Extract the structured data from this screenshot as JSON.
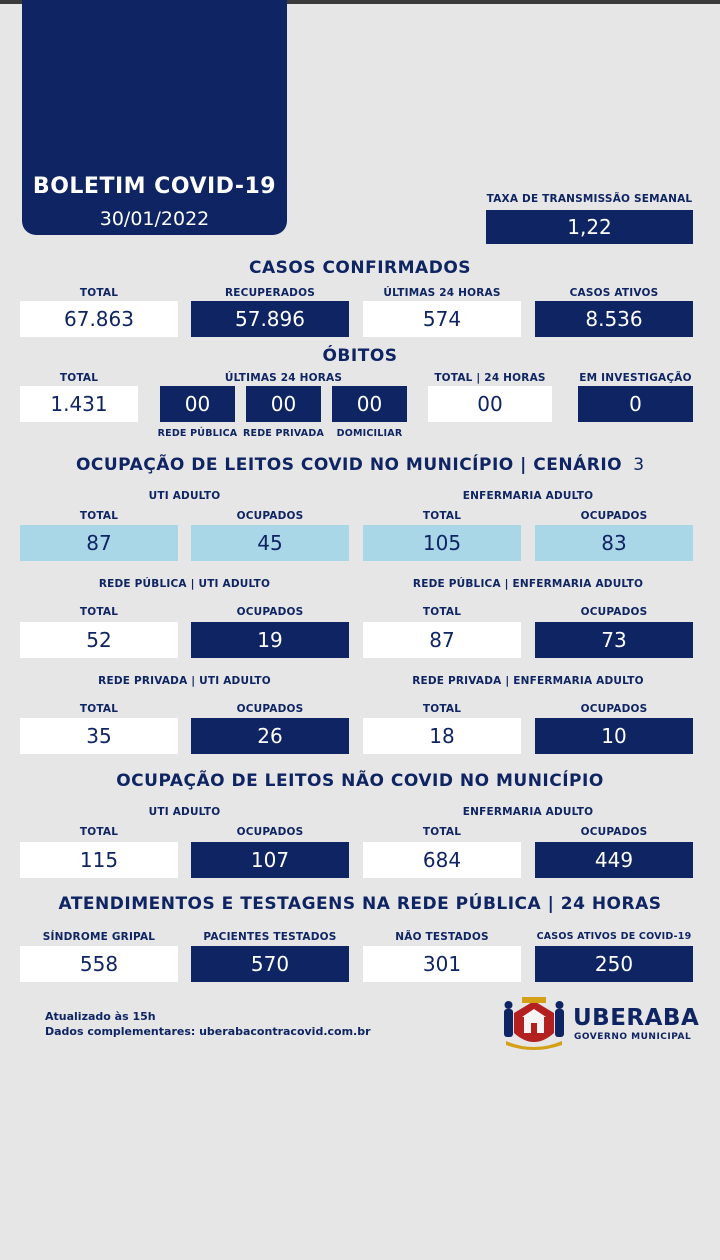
{
  "header": {
    "title": "BOLETIM COVID-19",
    "date": "30/01/2022"
  },
  "transmission": {
    "label": "TAXA DE TRANSMISSÃO SEMANAL",
    "value": "1,22"
  },
  "confirmed": {
    "title": "CASOS CONFIRMADOS",
    "total": {
      "label": "TOTAL",
      "value": "67.863"
    },
    "recovered": {
      "label": "RECUPERADOS",
      "value": "57.896"
    },
    "last24": {
      "label": "ÚLTIMAS 24 HORAS",
      "value": "574"
    },
    "active": {
      "label": "CASOS ATIVOS",
      "value": "8.536"
    }
  },
  "deaths": {
    "title": "ÓBITOS",
    "total": {
      "label": "TOTAL",
      "value": "1.431"
    },
    "last24_label": "ÚLTIMAS 24 HORAS",
    "public": {
      "label": "REDE PÚBLICA",
      "value": "00"
    },
    "private": {
      "label": "REDE PRIVADA",
      "value": "00"
    },
    "home": {
      "label": "DOMICILIAR",
      "value": "00"
    },
    "total24": {
      "label": "TOTAL | 24 HORAS",
      "value": "00"
    },
    "investigation": {
      "label": "EM INVESTIGAÇÃO",
      "value": "0"
    }
  },
  "covid_beds": {
    "title": "OCUPAÇÃO DE LEITOS COVID NO MUNICÍPIO | CENÁRIO",
    "scenario": "3",
    "uti_label": "UTI ADULTO",
    "enf_label": "ENFERMARIA ADULTO",
    "total_label": "TOTAL",
    "occupied_label": "OCUPADOS",
    "uti_total": "87",
    "uti_occupied": "45",
    "enf_total": "105",
    "enf_occupied": "83",
    "public_uti_label": "REDE PÚBLICA | UTI ADULTO",
    "public_enf_label": "REDE PÚBLICA | ENFERMARIA ADULTO",
    "public_uti_total": "52",
    "public_uti_occupied": "19",
    "public_enf_total": "87",
    "public_enf_occupied": "73",
    "private_uti_label": "REDE PRIVADA | UTI ADULTO",
    "private_enf_label": "REDE PRIVADA | ENFERMARIA ADULTO",
    "private_uti_total": "35",
    "private_uti_occupied": "26",
    "private_enf_total": "18",
    "private_enf_occupied": "10"
  },
  "noncovid_beds": {
    "title": "OCUPAÇÃO DE LEITOS NÃO COVID NO MUNICÍPIO",
    "uti_label": "UTI ADULTO",
    "enf_label": "ENFERMARIA ADULTO",
    "total_label": "TOTAL",
    "occupied_label": "OCUPADOS",
    "uti_total": "115",
    "uti_occupied": "107",
    "enf_total": "684",
    "enf_occupied": "449"
  },
  "tests": {
    "title": "ATENDIMENTOS E TESTAGENS NA REDE PÚBLICA | 24 HORAS",
    "flu": {
      "label": "SÍNDROME GRIPAL",
      "value": "558"
    },
    "tested": {
      "label": "PACIENTES TESTADOS",
      "value": "570"
    },
    "not_tested": {
      "label": "NÃO TESTADOS",
      "value": "301"
    },
    "active": {
      "label": "CASOS ATIVOS DE COVID-19",
      "value": "250"
    }
  },
  "footer": {
    "updated": "Atualizado às 15h",
    "more": "Dados complementares: uberabacontracovid.com.br",
    "logo_name": "UBERABA",
    "logo_sub": "GOVERNO MUNICIPAL",
    "logo_icon": "coat-of-arms-icon"
  },
  "colors": {
    "navy": "#0f2462",
    "light_blue": "#aad7e8",
    "background": "#e6e6e6",
    "white": "#ffffff"
  }
}
